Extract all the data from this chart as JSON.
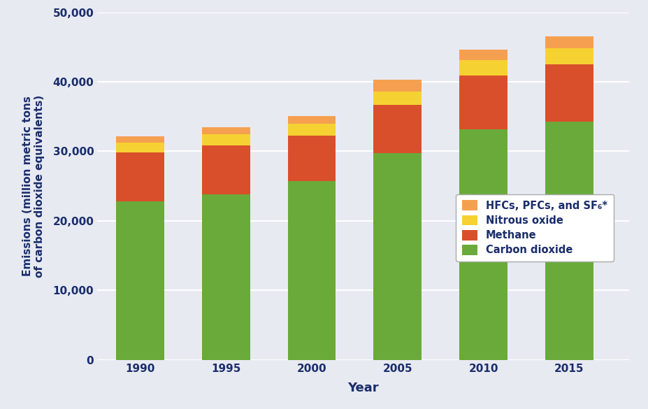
{
  "years": [
    "1990",
    "1995",
    "2000",
    "2005",
    "2010",
    "2015"
  ],
  "years_num": [
    1990,
    1995,
    2000,
    2005,
    2010,
    2015
  ],
  "carbon_dioxide": [
    22800,
    23800,
    25700,
    29700,
    33200,
    34300
  ],
  "methane": [
    7000,
    7000,
    6600,
    7000,
    7700,
    8200
  ],
  "nitrous_oxide": [
    1500,
    1700,
    1700,
    1900,
    2200,
    2300
  ],
  "hfcs_pfcs_sf6": [
    900,
    1000,
    1100,
    1700,
    1500,
    1700
  ],
  "colors": {
    "carbon_dioxide": "#6aaa3a",
    "methane": "#d94f2b",
    "nitrous_oxide": "#f5d232",
    "hfcs_pfcs_sf6": "#f5a050"
  },
  "legend_labels": [
    "HFCs, PFCs, and SF₆*",
    "Nitrous oxide",
    "Methane",
    "Carbon dioxide"
  ],
  "ylabel": "Emissions (million metric tons\nof carbon dioxide equivalents)",
  "xlabel": "Year",
  "ylim": [
    0,
    50000
  ],
  "yticks": [
    0,
    10000,
    20000,
    30000,
    40000,
    50000
  ],
  "background_color": "#e8eaf2",
  "bar_width": 2.8,
  "text_color": "#1a2d6b"
}
